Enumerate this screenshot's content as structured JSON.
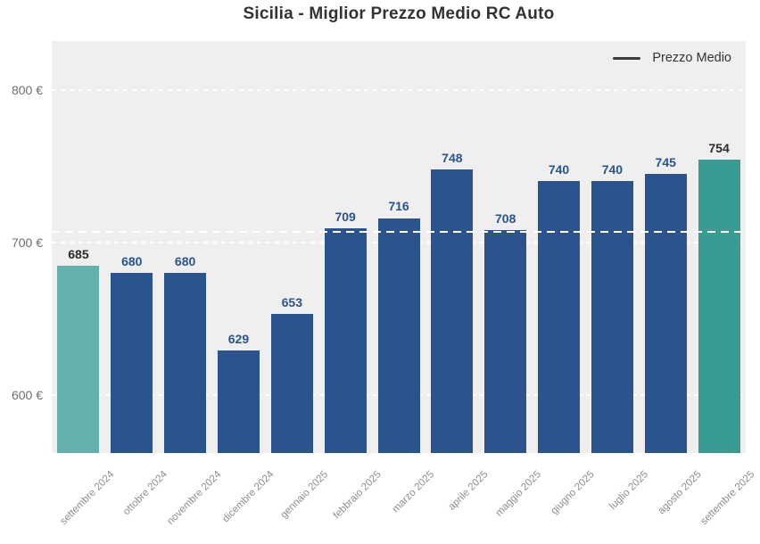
{
  "chart": {
    "title": "Sicilia - Miglior Prezzo Medio RC Auto",
    "legend_label": "Prezzo Medio"
  },
  "chart_data": {
    "type": "bar",
    "title": "Sicilia - Miglior Prezzo Medio RC Auto",
    "xlabel": "",
    "ylabel": "",
    "currency": "€",
    "categories": [
      "settembre 2024",
      "ottobre 2024",
      "novembre 2024",
      "dicembre 2024",
      "gennaio 2025",
      "febbraio 2025",
      "marzo 2025",
      "aprile 2025",
      "maggio 2025",
      "giugno 2025",
      "luglio 2025",
      "agosto 2025",
      "settembre 2025"
    ],
    "values": [
      685,
      680,
      680,
      629,
      653,
      709,
      716,
      748,
      708,
      740,
      740,
      745,
      754
    ],
    "legend": {
      "label": "Prezzo Medio",
      "position": "top-right"
    },
    "average_line": {
      "label": "Prezzo Medio",
      "value": 707,
      "style": "dashed-white"
    },
    "yticks": [
      {
        "value": 600,
        "label": "600 €"
      },
      {
        "value": 700,
        "label": "700 €"
      },
      {
        "value": 800,
        "label": "800 €"
      }
    ],
    "ylim": [
      562,
      832
    ],
    "grid": {
      "show": true,
      "style": "dashed-white"
    },
    "colors": {
      "bar_default": "#2b548e",
      "bar_first": "#63b1ad",
      "bar_last": "#3a9b92",
      "value_label_default": "#2a5490",
      "value_label_accent": "#2b2b2b",
      "plot_background": "#efefef",
      "title_text": "#333333",
      "axis_text": "#6e6e6e"
    }
  }
}
